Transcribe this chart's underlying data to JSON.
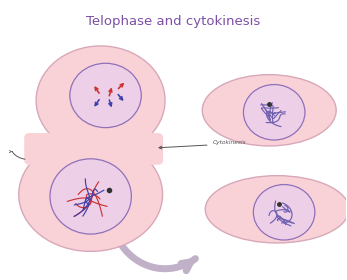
{
  "title": "Telophase and cytokinesis",
  "title_color": "#7B4FA6",
  "title_fontsize": 9.5,
  "cell_fill": "#F9D2D8",
  "cell_edge": "#D8A8B8",
  "nucleus_fill": "#EDD0E8",
  "nucleus_edge": "#9070B8",
  "bg_color": "#FFFFFF",
  "cytokinesis_label": "Cytokinesis",
  "arrow_color": "#C0B0C8",
  "chrom_red": "#CC3333",
  "chrom_blue": "#4040AA",
  "chrom_purple": "#7060B0",
  "dark_line": "#555555"
}
